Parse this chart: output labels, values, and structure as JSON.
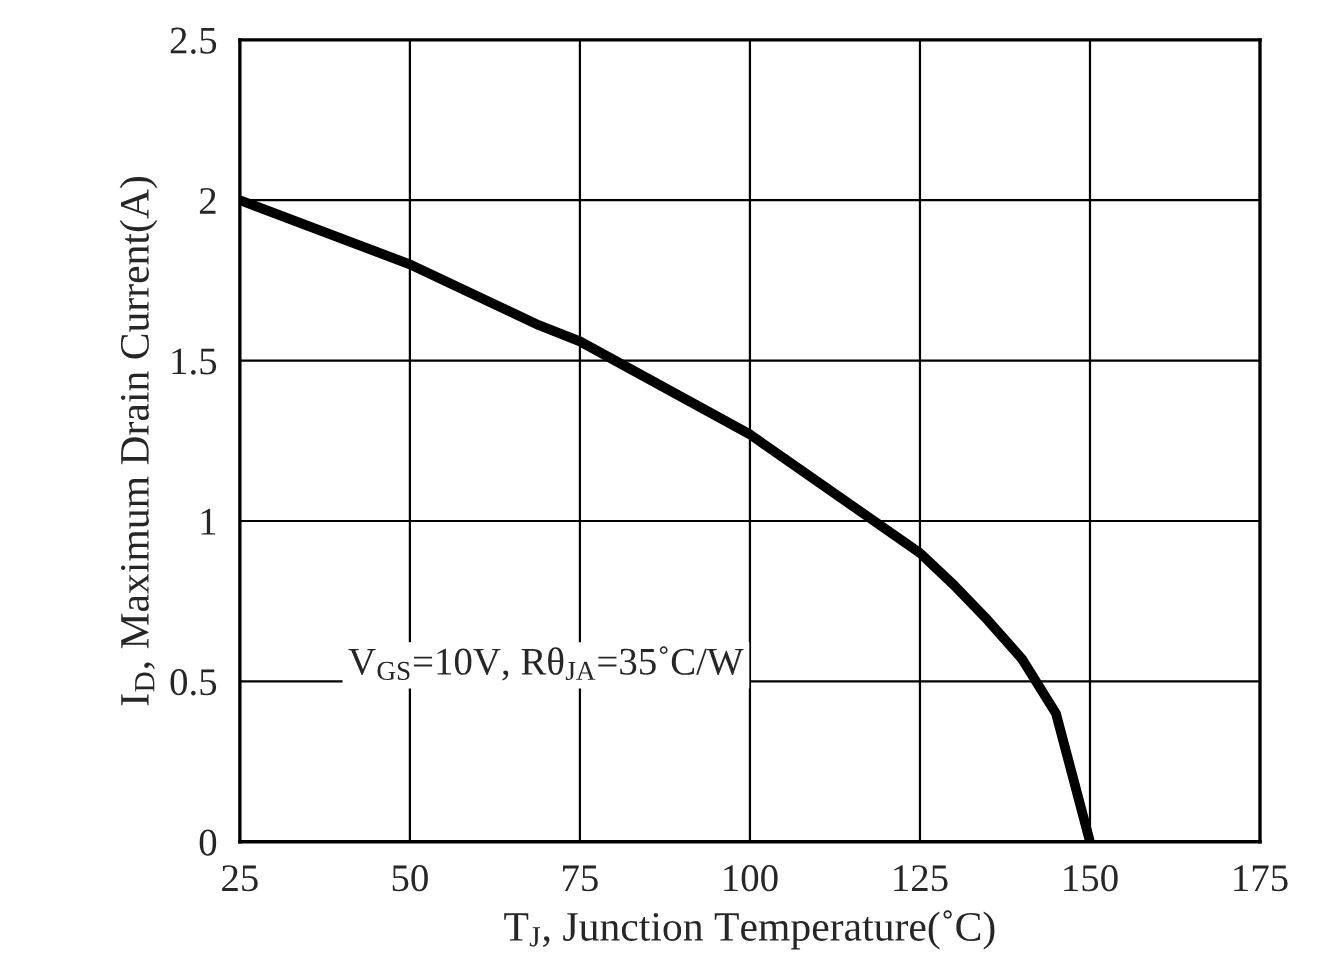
{
  "chart_data": {
    "type": "line",
    "xlabel": "T$_{J}$, Junction Temperature(˚C)",
    "ylabel": "I$_{D}$, Maximum Drain Current(A)",
    "annotations": [
      "V$_{GS}$=10V, Rθ$_{JA}$=35˚C/W"
    ],
    "x": [
      25,
      50,
      69,
      75,
      100,
      125,
      130,
      135,
      140,
      145,
      150
    ],
    "series": [
      {
        "color": "#000000",
        "values": [
          2.0,
          1.8,
          1.61,
          1.56,
          1.27,
          0.9,
          0.8,
          0.69,
          0.57,
          0.4,
          0
        ]
      }
    ],
    "xlim": [
      25,
      175
    ],
    "xticks": [
      25,
      50,
      75,
      100,
      125,
      150,
      175
    ],
    "ylim": [
      0,
      2.5
    ],
    "yticks": [
      0,
      0.5,
      1,
      1.5,
      2,
      2.5
    ],
    "grid": true,
    "marker": "none",
    "line_style": "solid"
  }
}
